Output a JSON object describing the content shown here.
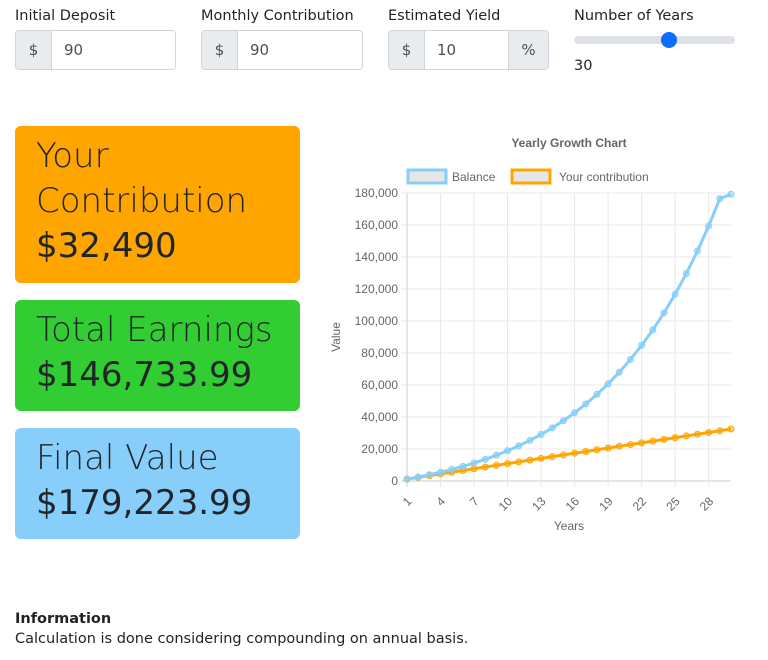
{
  "inputs": {
    "initial_deposit": {
      "label": "Initial Deposit",
      "prefix": "$",
      "value": "90"
    },
    "monthly_contribution": {
      "label": "Monthly Contribution",
      "prefix": "$",
      "value": "90"
    },
    "estimated_yield": {
      "label": "Estimated Yield",
      "prefix": "$",
      "value": "10",
      "suffix": "%"
    },
    "years": {
      "label": "Number of Years",
      "value": "30",
      "min": 1,
      "max": 50
    }
  },
  "cards": {
    "contribution": {
      "title_line1": "Your",
      "title_line2": "Contribution",
      "value": "$32,490",
      "color": "#ffa500"
    },
    "earnings": {
      "title": "Total Earnings",
      "value": "$146,733.99",
      "color": "#32cd32"
    },
    "final": {
      "title": "Final Value",
      "value": "$179,223.99",
      "color": "#87cefa"
    }
  },
  "info": {
    "heading": "Information",
    "text": "Calculation is done considering compounding on annual basis."
  },
  "chart_data": {
    "type": "line",
    "title": "Yearly Growth Chart",
    "xlabel": "Years",
    "ylabel": "Value",
    "ylim": [
      0,
      180000
    ],
    "yticks": [
      "0",
      "20,000",
      "40,000",
      "60,000",
      "80,000",
      "100,000",
      "120,000",
      "140,000",
      "160,000",
      "180,000"
    ],
    "xticks": [
      "1",
      "4",
      "7",
      "10",
      "13",
      "16",
      "19",
      "22",
      "25",
      "28"
    ],
    "x": [
      1,
      2,
      3,
      4,
      5,
      6,
      7,
      8,
      9,
      10,
      11,
      12,
      13,
      14,
      15,
      16,
      17,
      18,
      19,
      20,
      21,
      22,
      23,
      24,
      25,
      26,
      27,
      28,
      29,
      30
    ],
    "series": [
      {
        "name": "Balance",
        "color": "#87cefa",
        "values": [
          1170,
          2475,
          3910,
          5490,
          7230,
          9140,
          11240,
          13550,
          16090,
          18890,
          21970,
          25360,
          29080,
          33180,
          37690,
          42650,
          48110,
          54120,
          60720,
          67980,
          75980,
          84760,
          94430,
          105060,
          116760,
          129630,
          143790,
          159360,
          176490,
          179224
        ]
      },
      {
        "name": "Your contribution",
        "color": "#ffa500",
        "values": [
          1170,
          2250,
          3330,
          4410,
          5490,
          6570,
          7650,
          8730,
          9810,
          10890,
          11970,
          13050,
          14130,
          15210,
          16290,
          17370,
          18450,
          19530,
          20610,
          21690,
          22770,
          23850,
          24930,
          26010,
          27090,
          28170,
          29250,
          30330,
          31410,
          32490
        ]
      }
    ],
    "legend_position": "top",
    "grid": true
  }
}
